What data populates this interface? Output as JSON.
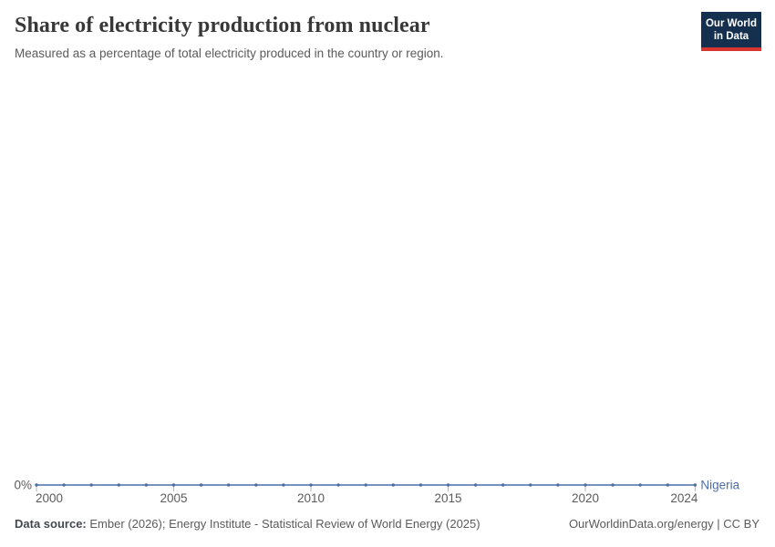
{
  "header": {
    "title": "Share of electricity production from nuclear",
    "subtitle": "Measured as a percentage of total electricity produced in the country or region.",
    "logo": {
      "line1": "Our World",
      "line2": "in Data",
      "bg_color": "#15304F",
      "accent_color": "#D8352F"
    }
  },
  "chart_data": {
    "type": "line",
    "title": "Share of electricity production from nuclear",
    "subtitle": "Measured as a percentage of total electricity produced in the country or region.",
    "x": [
      2000,
      2001,
      2002,
      2003,
      2004,
      2005,
      2006,
      2007,
      2008,
      2009,
      2010,
      2011,
      2012,
      2013,
      2014,
      2015,
      2016,
      2017,
      2018,
      2019,
      2020,
      2021,
      2022,
      2023,
      2024
    ],
    "series": [
      {
        "name": "Nigeria",
        "color": "#4C6FA8",
        "values": [
          0,
          0,
          0,
          0,
          0,
          0,
          0,
          0,
          0,
          0,
          0,
          0,
          0,
          0,
          0,
          0,
          0,
          0,
          0,
          0,
          0,
          0,
          0,
          0,
          0
        ]
      }
    ],
    "x_ticks": [
      2000,
      2005,
      2010,
      2015,
      2020,
      2024
    ],
    "y_ticks": [
      "0%"
    ],
    "unit": "%",
    "grid": false,
    "legend_position": "end-of-line",
    "axis_text_color": "#5b5b5b",
    "tick_mark_color": "#b0b5ba"
  },
  "footer": {
    "source_label": "Data source:",
    "source_text": "Ember (2026); Energy Institute - Statistical Review of World Energy (2025)",
    "rights": "OurWorldinData.org/energy | CC BY"
  }
}
